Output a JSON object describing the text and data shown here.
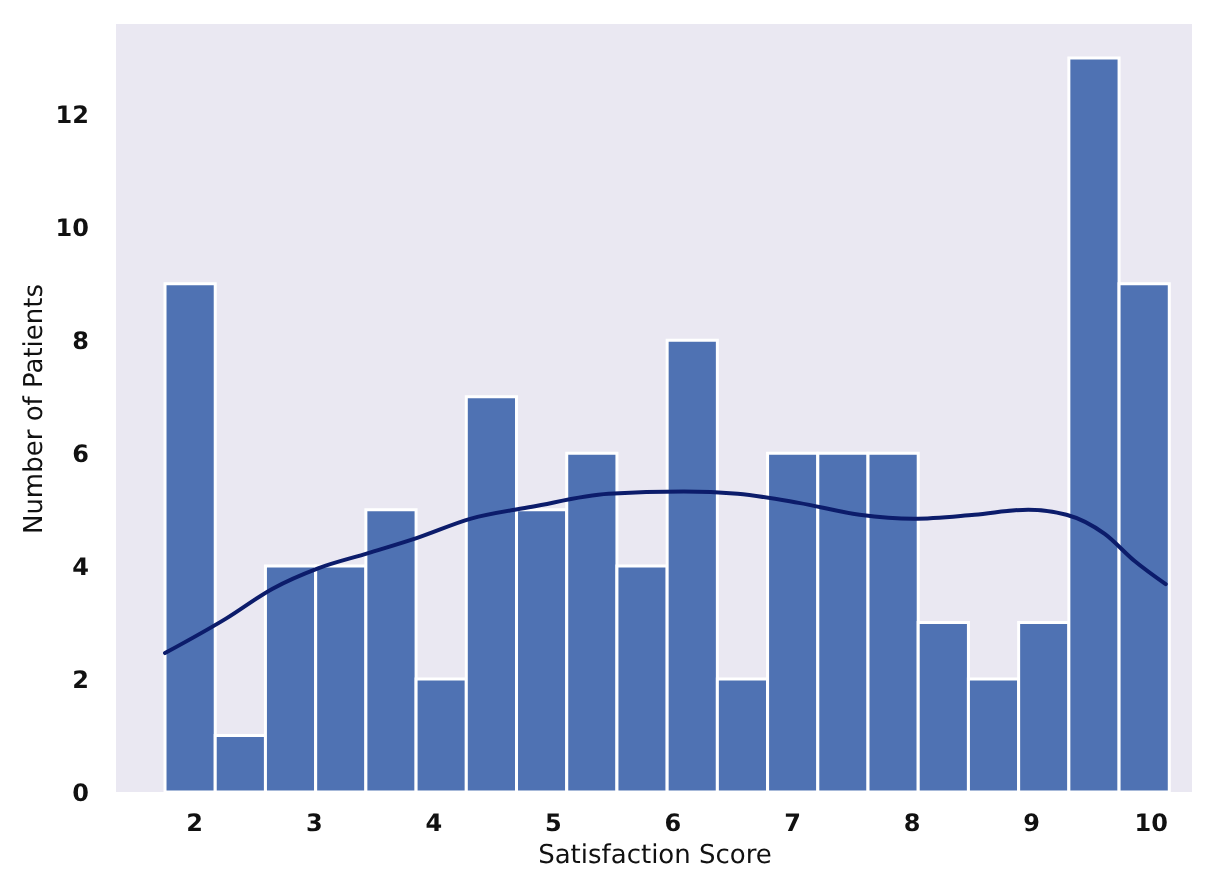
{
  "chart_data": {
    "type": "histogram",
    "xlabel": "Satisfaction Score",
    "ylabel": "Number of Patients",
    "bins": [
      1.76,
      2.18,
      2.6,
      3.02,
      3.44,
      3.86,
      4.28,
      4.7,
      5.12,
      5.54,
      5.96,
      6.38,
      6.8,
      7.22,
      7.64,
      8.06,
      8.48,
      8.9,
      9.32,
      9.74,
      10.16
    ],
    "values": [
      9,
      1,
      4,
      4,
      5,
      2,
      7,
      5,
      6,
      4,
      8,
      2,
      6,
      6,
      6,
      3,
      2,
      3,
      13,
      9
    ],
    "color": "#4f72b3",
    "series": [
      {
        "type": "line",
        "color": "#0c1c6b",
        "x": [
          1.76,
          2.27,
          2.66,
          3.04,
          3.46,
          3.87,
          4.32,
          4.83,
          5.47,
          6.1,
          6.55,
          7.06,
          7.57,
          8.02,
          8.53,
          8.98,
          9.3,
          9.62,
          9.87,
          10.13
        ],
        "values": [
          2.46,
          3.07,
          3.6,
          3.96,
          4.23,
          4.5,
          4.84,
          5.05,
          5.28,
          5.32,
          5.28,
          5.12,
          4.91,
          4.84,
          4.91,
          5.0,
          4.91,
          4.57,
          4.09,
          3.68
        ]
      }
    ],
    "xlim": [
      1.35,
      10.35
    ],
    "ylim": [
      0,
      13.6
    ],
    "xticks": [
      2,
      3,
      4,
      5,
      6,
      7,
      8,
      9,
      10
    ],
    "yticks": [
      0,
      2,
      4,
      6,
      8,
      10,
      12
    ],
    "grid": false
  }
}
